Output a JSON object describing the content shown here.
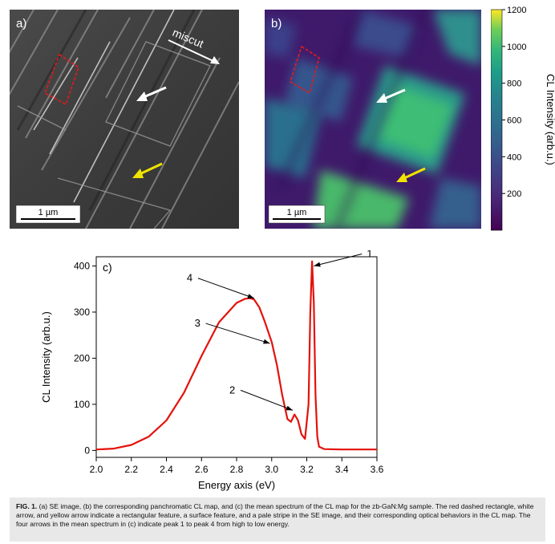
{
  "panel_a": {
    "label": "a)",
    "miscut_label": "miscut",
    "scalebar_label": "1 µm"
  },
  "panel_b": {
    "label": "b)",
    "scalebar_label": "1 µm"
  },
  "colorbar": {
    "label": "CL Intensity (arb.u.)",
    "ticks": [
      "1200",
      "1000",
      "800",
      "600",
      "400",
      "200"
    ]
  },
  "chart_data": {
    "type": "line",
    "panel_label": "c)",
    "xlabel": "Energy axis (eV)",
    "ylabel": "CL Intensity (arb.u.)",
    "xlim": [
      2.0,
      3.6
    ],
    "ylim": [
      -15,
      420
    ],
    "xticks": [
      "2.0",
      "2.2",
      "2.4",
      "2.6",
      "2.8",
      "3.0",
      "3.2",
      "3.4",
      "3.6"
    ],
    "yticks": [
      "0",
      "100",
      "200",
      "300",
      "400"
    ],
    "series": [
      {
        "color": "#e3120b",
        "x": [
          2.0,
          2.1,
          2.2,
          2.3,
          2.4,
          2.5,
          2.6,
          2.7,
          2.8,
          2.85,
          2.88,
          2.9,
          2.93,
          2.96,
          3.0,
          3.03,
          3.06,
          3.09,
          3.11,
          3.13,
          3.15,
          3.17,
          3.19,
          3.21,
          3.22,
          3.23,
          3.24,
          3.25,
          3.26,
          3.27,
          3.3,
          3.4,
          3.5,
          3.6
        ],
        "y": [
          2,
          4,
          12,
          30,
          65,
          125,
          205,
          278,
          320,
          329,
          330,
          327,
          310,
          280,
          235,
          185,
          120,
          68,
          62,
          78,
          65,
          35,
          25,
          100,
          300,
          410,
          320,
          120,
          30,
          8,
          3,
          2,
          2,
          2
        ]
      }
    ],
    "annotations": [
      {
        "label": "1",
        "x": 3.24,
        "y": 400
      },
      {
        "label": "2",
        "x": 3.12,
        "y": 87
      },
      {
        "label": "3",
        "x": 2.99,
        "y": 232
      },
      {
        "label": "4",
        "x": 2.9,
        "y": 330
      }
    ]
  },
  "caption": {
    "lead": "FIG. 1.",
    "text": "(a) SE image, (b) the corresponding panchromatic CL map, and (c) the mean spectrum of the CL map for the zb-GaN:Mg sample. The red dashed rectangle, white arrow, and yellow arrow indicate a rectangular feature, a surface feature, and a pale stripe in the SE image, and their corresponding optical behaviors in the CL map. The four arrows in the mean spectrum in (c) indicate peak 1 to peak 4 from high to low energy."
  }
}
